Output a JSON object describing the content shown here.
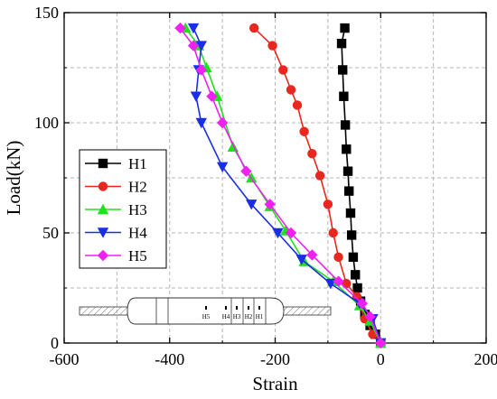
{
  "chart_data": {
    "type": "line",
    "xlabel": "Strain",
    "ylabel": "Load(kN)",
    "xlim": [
      -600,
      200
    ],
    "ylim": [
      0,
      150
    ],
    "x_ticks": [
      -600,
      -400,
      -200,
      0,
      200
    ],
    "y_ticks": [
      0,
      50,
      100,
      150
    ],
    "grid": true,
    "legend_position": "left-middle",
    "series": [
      {
        "name": "H1",
        "color": "#000000",
        "marker": "square",
        "points": [
          [
            0,
            0
          ],
          [
            -10,
            4
          ],
          [
            -20,
            8
          ],
          [
            -30,
            13
          ],
          [
            -38,
            19
          ],
          [
            -44,
            25
          ],
          [
            -48,
            31
          ],
          [
            -52,
            39
          ],
          [
            -55,
            49
          ],
          [
            -57,
            59
          ],
          [
            -60,
            69
          ],
          [
            -62,
            78
          ],
          [
            -65,
            88
          ],
          [
            -67,
            99
          ],
          [
            -70,
            112
          ],
          [
            -72,
            124
          ],
          [
            -74,
            136
          ],
          [
            -68,
            143
          ]
        ]
      },
      {
        "name": "H2",
        "color": "#e8281e",
        "marker": "circle",
        "points": [
          [
            0,
            0
          ],
          [
            -15,
            4
          ],
          [
            -30,
            11
          ],
          [
            -45,
            21
          ],
          [
            -65,
            27
          ],
          [
            -80,
            39
          ],
          [
            -90,
            50
          ],
          [
            -100,
            63
          ],
          [
            -115,
            76
          ],
          [
            -130,
            86
          ],
          [
            -145,
            96
          ],
          [
            -158,
            108
          ],
          [
            -170,
            115
          ],
          [
            -185,
            124
          ],
          [
            -205,
            135
          ],
          [
            -240,
            143
          ]
        ]
      },
      {
        "name": "H3",
        "color": "#22e01e",
        "marker": "triangle-up",
        "points": [
          [
            0,
            0
          ],
          [
            -20,
            10
          ],
          [
            -40,
            17
          ],
          [
            -90,
            28
          ],
          [
            -145,
            37
          ],
          [
            -180,
            51
          ],
          [
            -210,
            62
          ],
          [
            -245,
            75
          ],
          [
            -280,
            89
          ],
          [
            -310,
            112
          ],
          [
            -330,
            125
          ],
          [
            -345,
            135
          ],
          [
            -370,
            143
          ]
        ]
      },
      {
        "name": "H4",
        "color": "#1a2ee8",
        "marker": "triangle-down",
        "points": [
          [
            0,
            0
          ],
          [
            -15,
            11
          ],
          [
            -40,
            18
          ],
          [
            -95,
            27
          ],
          [
            -150,
            38
          ],
          [
            -195,
            50
          ],
          [
            -245,
            63
          ],
          [
            -300,
            80
          ],
          [
            -340,
            100
          ],
          [
            -350,
            112
          ],
          [
            -345,
            124
          ],
          [
            -340,
            135
          ],
          [
            -355,
            143
          ]
        ]
      },
      {
        "name": "H5",
        "color": "#f020f0",
        "marker": "diamond",
        "points": [
          [
            0,
            0
          ],
          [
            -20,
            12
          ],
          [
            -35,
            18
          ],
          [
            -80,
            28
          ],
          [
            -130,
            40
          ],
          [
            -170,
            50
          ],
          [
            -210,
            63
          ],
          [
            -255,
            78
          ],
          [
            -300,
            100
          ],
          [
            -320,
            112
          ],
          [
            -340,
            124
          ],
          [
            -355,
            135
          ],
          [
            -380,
            143
          ]
        ]
      }
    ]
  },
  "specimen": {
    "labels": [
      "H5",
      "H4",
      "H3",
      "H2",
      "H1"
    ]
  }
}
